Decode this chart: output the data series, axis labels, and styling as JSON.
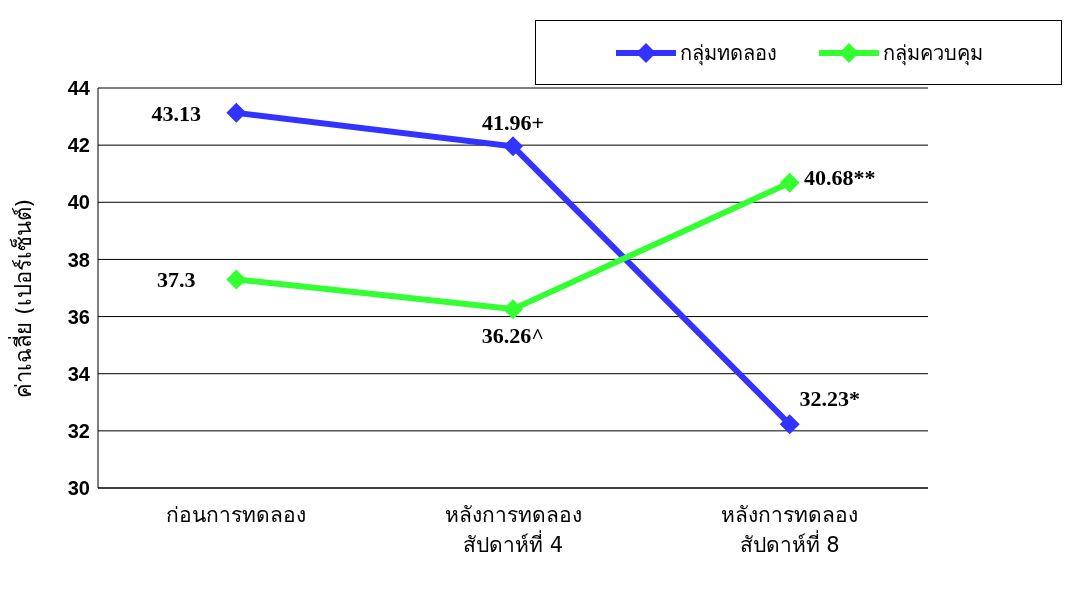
{
  "chart_data": {
    "type": "line",
    "ylabel": "ค่าเฉลี่ย (เปอร์เซ็นต์)",
    "categories": [
      "ก่อนการทดลอง",
      "หลังการทดลอง\nสัปดาห์ที่ 4",
      "หลังการทดลอง\nสัปดาห์ที่ 8"
    ],
    "series": [
      {
        "name": "กลุ่มทดลอง",
        "color": "#3333ff",
        "values": [
          43.13,
          41.96,
          32.23
        ],
        "value_labels": [
          "43.13",
          "41.96+",
          "32.23*"
        ]
      },
      {
        "name": "กลุ่มควบคุม",
        "color": "#33ff33",
        "values": [
          37.3,
          36.26,
          40.68
        ],
        "value_labels": [
          "37.3",
          "36.26^",
          "40.68**"
        ]
      }
    ],
    "ylim": [
      30,
      44
    ],
    "yticks": [
      30,
      32,
      34,
      36,
      38,
      40,
      42,
      44
    ],
    "grid": "y",
    "legend": "top right",
    "marker": "diamond",
    "line_style": "solid"
  }
}
